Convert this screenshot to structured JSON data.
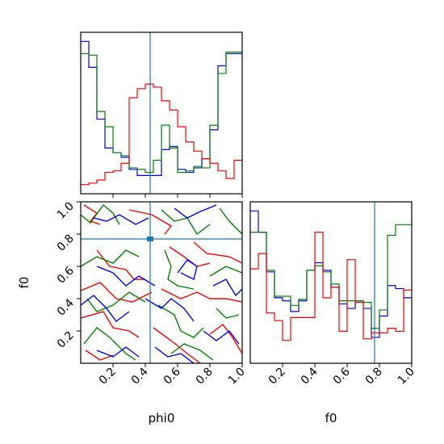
{
  "chart_data": {
    "type": "corner",
    "colors": {
      "blue": "#0000ff",
      "green": "#008000",
      "red": "#ff0000",
      "truth": "#1f77b4"
    },
    "truth": {
      "phi0": 0.43,
      "f0": 0.77
    },
    "axis_labels": {
      "phi0": "phi0",
      "f0": "f0"
    },
    "tick_labels": [
      "0.2",
      "0.4",
      "0.6",
      "0.8",
      "1.0"
    ],
    "phi0_hist": {
      "bins": 20,
      "range": [
        0,
        1
      ],
      "series": [
        {
          "color": "blue",
          "heights": [
            1.0,
            0.83,
            0.49,
            0.3,
            0.27,
            0.24,
            0.16,
            0.12,
            0.12,
            0.12,
            0.29,
            0.31,
            0.16,
            0.14,
            0.17,
            0.23,
            0.42,
            0.84,
            0.92,
            0.92
          ]
        },
        {
          "color": "green",
          "heights": [
            0.92,
            0.91,
            0.54,
            0.44,
            0.27,
            0.25,
            0.17,
            0.16,
            0.14,
            0.22,
            0.45,
            0.3,
            0.14,
            0.15,
            0.18,
            0.17,
            0.45,
            0.79,
            0.93,
            0.93
          ]
        },
        {
          "color": "red",
          "heights": [
            0.06,
            0.07,
            0.09,
            0.14,
            0.15,
            0.2,
            0.63,
            0.69,
            0.72,
            0.7,
            0.61,
            0.55,
            0.44,
            0.34,
            0.28,
            0.23,
            0.2,
            0.15,
            0.1,
            0.22
          ]
        }
      ]
    },
    "f0_hist": {
      "bins": 20,
      "range": [
        0,
        1
      ],
      "series": [
        {
          "color": "blue",
          "heights": [
            1.0,
            0.86,
            0.6,
            0.43,
            0.41,
            0.34,
            0.41,
            0.61,
            0.66,
            0.61,
            0.5,
            0.39,
            0.36,
            0.41,
            0.36,
            0.17,
            0.31,
            0.51,
            0.49,
            0.43
          ]
        },
        {
          "color": "green",
          "heights": [
            0.86,
            0.86,
            0.61,
            0.44,
            0.44,
            0.38,
            0.42,
            0.61,
            0.64,
            0.6,
            0.52,
            0.41,
            0.41,
            0.41,
            0.4,
            0.23,
            0.35,
            0.84,
            0.91,
            0.91
          ]
        },
        {
          "color": "red",
          "heights": [
            0.62,
            0.72,
            0.33,
            0.28,
            0.15,
            0.3,
            0.3,
            0.3,
            0.86,
            0.43,
            0.5,
            0.21,
            0.68,
            0.4,
            0.16,
            0.2,
            0.2,
            0.23,
            0.21,
            0.48
          ]
        }
      ]
    },
    "joint": {
      "xlim": [
        0,
        1
      ],
      "ylim": [
        0,
        1
      ],
      "truth_point": [
        0.43,
        0.77
      ],
      "contours": [
        {
          "color": "red",
          "curves": [
            [
              [
                0.02,
                0.98
              ],
              [
                0.1,
                0.93
              ],
              [
                0.06,
                0.88
              ],
              [
                0.12,
                0.86
              ]
            ],
            [
              [
                0.3,
                0.95
              ],
              [
                0.44,
                0.92
              ],
              [
                0.56,
                0.85
              ],
              [
                0.52,
                0.8
              ]
            ],
            [
              [
                0.7,
                0.75
              ],
              [
                0.78,
                0.68
              ],
              [
                0.92,
                0.66
              ],
              [
                1.0,
                0.62
              ]
            ],
            [
              [
                0.1,
                0.7
              ],
              [
                0.18,
                0.6
              ],
              [
                0.28,
                0.58
              ],
              [
                0.33,
                0.52
              ],
              [
                0.4,
                0.52
              ]
            ],
            [
              [
                0.55,
                0.72
              ],
              [
                0.64,
                0.66
              ],
              [
                0.72,
                0.6
              ],
              [
                0.8,
                0.62
              ]
            ],
            [
              [
                0.0,
                0.45
              ],
              [
                0.12,
                0.5
              ],
              [
                0.22,
                0.4
              ],
              [
                0.32,
                0.38
              ],
              [
                0.44,
                0.44
              ]
            ],
            [
              [
                0.5,
                0.46
              ],
              [
                0.62,
                0.4
              ],
              [
                0.72,
                0.44
              ],
              [
                0.8,
                0.4
              ],
              [
                0.9,
                0.4
              ],
              [
                1.0,
                0.38
              ]
            ],
            [
              [
                0.0,
                0.28
              ],
              [
                0.14,
                0.32
              ],
              [
                0.2,
                0.22
              ],
              [
                0.3,
                0.2
              ],
              [
                0.36,
                0.16
              ]
            ],
            [
              [
                0.45,
                0.22
              ],
              [
                0.56,
                0.14
              ],
              [
                0.66,
                0.06
              ],
              [
                0.74,
                0.0
              ]
            ],
            [
              [
                0.8,
                0.18
              ],
              [
                0.88,
                0.24
              ],
              [
                0.94,
                0.16
              ],
              [
                1.0,
                0.06
              ]
            ],
            [
              [
                0.03,
                0.08
              ],
              [
                0.12,
                0.02
              ],
              [
                0.2,
                0.05
              ]
            ]
          ]
        },
        {
          "color": "green",
          "curves": [
            [
              [
                0.0,
                0.92
              ],
              [
                0.06,
                0.87
              ],
              [
                0.14,
                0.98
              ],
              [
                0.2,
                0.93
              ],
              [
                0.24,
                0.86
              ]
            ],
            [
              [
                0.5,
                0.95
              ],
              [
                0.58,
                0.88
              ],
              [
                0.66,
                0.9
              ],
              [
                0.72,
                0.8
              ],
              [
                0.8,
                0.86
              ]
            ],
            [
              [
                0.86,
                0.96
              ],
              [
                0.92,
                0.88
              ],
              [
                1.0,
                0.8
              ]
            ],
            [
              [
                0.0,
                0.6
              ],
              [
                0.1,
                0.66
              ],
              [
                0.2,
                0.62
              ],
              [
                0.28,
                0.7
              ],
              [
                0.36,
                0.66
              ]
            ],
            [
              [
                0.52,
                0.7
              ],
              [
                0.56,
                0.6
              ],
              [
                0.54,
                0.52
              ],
              [
                0.6,
                0.48
              ],
              [
                0.7,
                0.46
              ]
            ],
            [
              [
                0.8,
                0.54
              ],
              [
                0.9,
                0.6
              ],
              [
                1.0,
                0.56
              ]
            ],
            [
              [
                0.04,
                0.4
              ],
              [
                0.1,
                0.32
              ],
              [
                0.2,
                0.36
              ],
              [
                0.3,
                0.44
              ],
              [
                0.4,
                0.38
              ]
            ],
            [
              [
                0.48,
                0.36
              ],
              [
                0.58,
                0.3
              ],
              [
                0.62,
                0.2
              ],
              [
                0.7,
                0.16
              ],
              [
                0.76,
                0.22
              ]
            ],
            [
              [
                0.84,
                0.34
              ],
              [
                0.9,
                0.28
              ],
              [
                0.98,
                0.3
              ]
            ],
            [
              [
                0.02,
                0.12
              ],
              [
                0.1,
                0.22
              ],
              [
                0.18,
                0.16
              ],
              [
                0.28,
                0.06
              ],
              [
                0.34,
                0.02
              ]
            ],
            [
              [
                0.56,
                0.06
              ],
              [
                0.64,
                0.12
              ],
              [
                0.74,
                0.08
              ],
              [
                0.82,
                0.02
              ]
            ]
          ]
        },
        {
          "color": "blue",
          "curves": [
            [
              [
                0.08,
                0.9
              ],
              [
                0.16,
                0.88
              ],
              [
                0.24,
                0.92
              ],
              [
                0.34,
                0.86
              ],
              [
                0.42,
                0.9
              ]
            ],
            [
              [
                0.58,
                0.96
              ],
              [
                0.66,
                0.9
              ],
              [
                0.74,
                0.94
              ],
              [
                0.84,
                0.98
              ]
            ],
            [
              [
                0.1,
                0.6
              ],
              [
                0.2,
                0.56
              ],
              [
                0.28,
                0.48
              ],
              [
                0.36,
                0.54
              ],
              [
                0.46,
                0.48
              ]
            ],
            [
              [
                0.6,
                0.56
              ],
              [
                0.66,
                0.64
              ],
              [
                0.72,
                0.6
              ],
              [
                0.7,
                0.52
              ],
              [
                0.62,
                0.56
              ]
            ],
            [
              [
                0.82,
                0.48
              ],
              [
                0.9,
                0.52
              ],
              [
                0.96,
                0.42
              ],
              [
                1.0,
                0.46
              ]
            ],
            [
              [
                0.0,
                0.36
              ],
              [
                0.08,
                0.42
              ],
              [
                0.16,
                0.34
              ],
              [
                0.22,
                0.26
              ],
              [
                0.3,
                0.32
              ]
            ],
            [
              [
                0.4,
                0.4
              ],
              [
                0.5,
                0.34
              ],
              [
                0.56,
                0.4
              ],
              [
                0.64,
                0.34
              ],
              [
                0.7,
                0.26
              ]
            ],
            [
              [
                0.76,
                0.2
              ],
              [
                0.84,
                0.14
              ],
              [
                0.92,
                0.2
              ],
              [
                0.98,
                0.12
              ]
            ],
            [
              [
                0.1,
                0.08
              ],
              [
                0.2,
                0.04
              ],
              [
                0.28,
                0.1
              ],
              [
                0.36,
                0.04
              ]
            ],
            [
              [
                0.46,
                0.1
              ],
              [
                0.54,
                0.04
              ],
              [
                0.62,
                0.06
              ],
              [
                0.7,
                0.0
              ]
            ]
          ]
        }
      ]
    }
  }
}
